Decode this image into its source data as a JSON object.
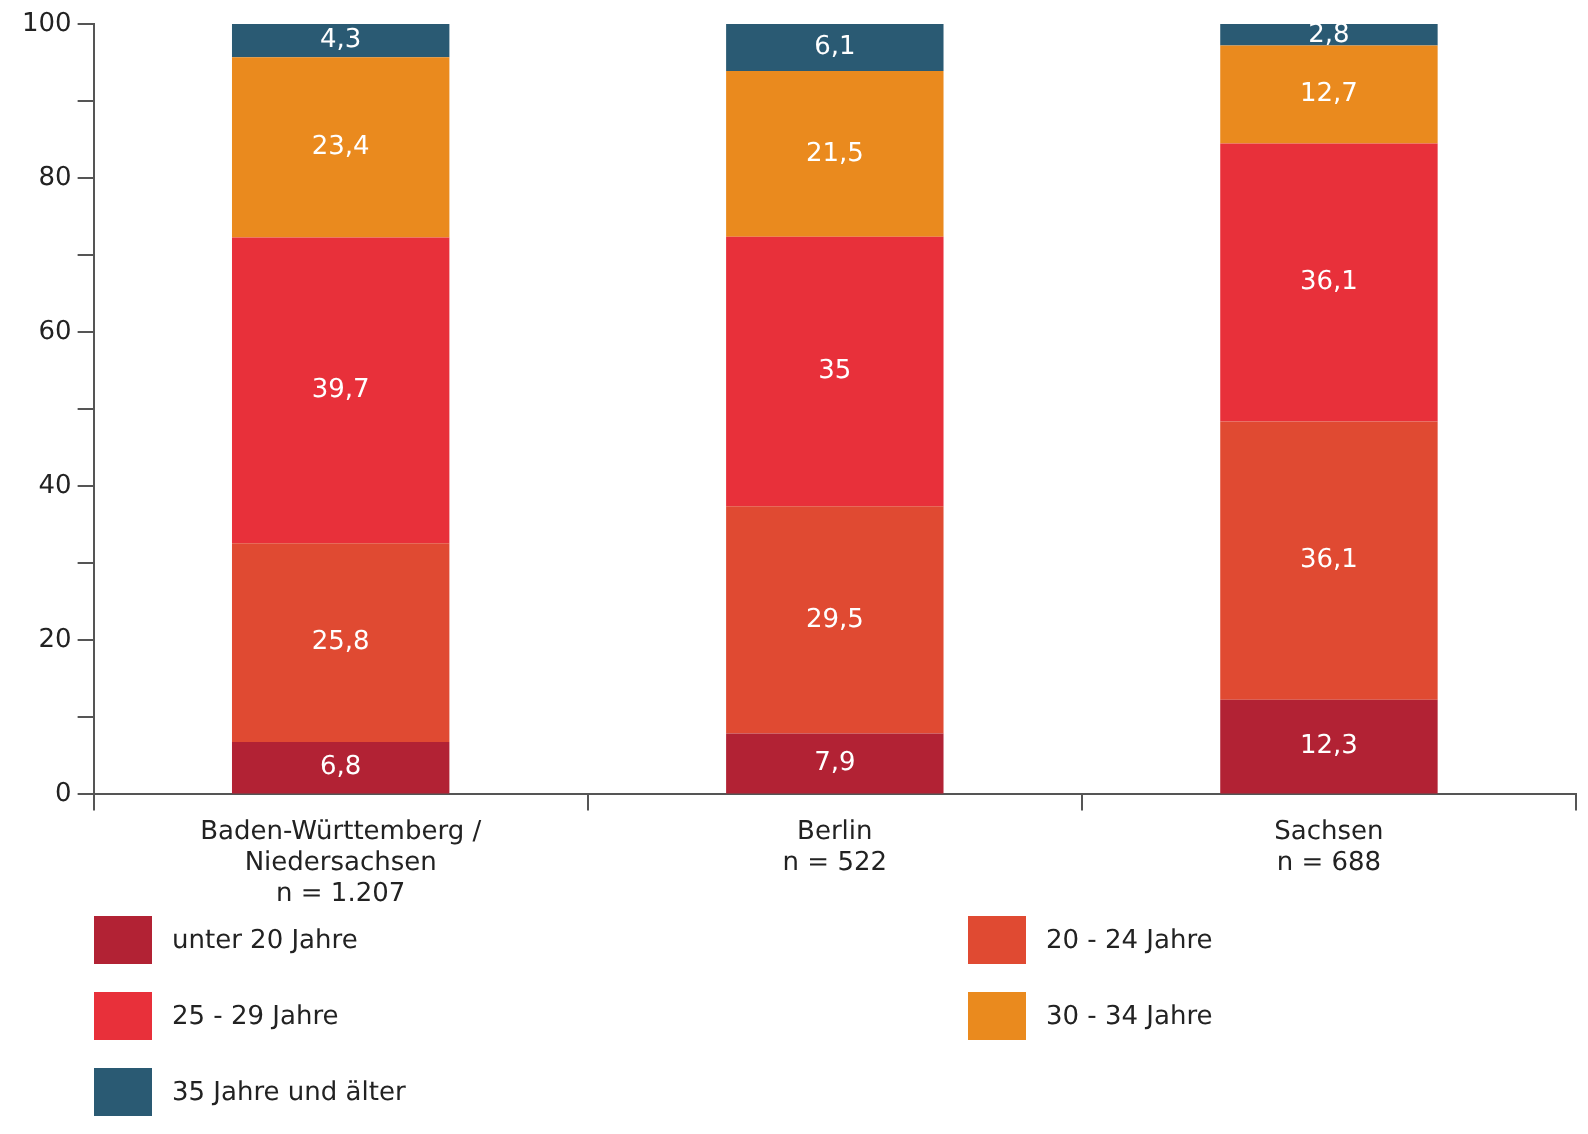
{
  "chart_data": {
    "type": "bar",
    "stacked": true,
    "categories": [
      "Baden-Württemberg /\nNiedersachsen\nn = 1.207",
      "Berlin\nn = 522",
      "Sachsen\nn = 688"
    ],
    "series": [
      {
        "name": "unter 20 Jahre",
        "color": "#b22234",
        "values": [
          6.8,
          7.9,
          12.3
        ],
        "value_labels": [
          "6,8",
          "7,9",
          "12,3"
        ]
      },
      {
        "name": "20 - 24 Jahre",
        "color": "#e04a32",
        "values": [
          25.8,
          29.5,
          36.1
        ],
        "value_labels": [
          "25,8",
          "29,5",
          "36,1"
        ]
      },
      {
        "name": "25 - 29 Jahre",
        "color": "#e8303a",
        "values": [
          39.7,
          35,
          36.1
        ],
        "value_labels": [
          "39,7",
          "35",
          "36,1"
        ]
      },
      {
        "name": "30 - 34 Jahre",
        "color": "#ea8a1e",
        "values": [
          23.4,
          21.5,
          12.7
        ],
        "value_labels": [
          "23,4",
          "21,5",
          "12,7"
        ]
      },
      {
        "name": "35 Jahre und älter",
        "color": "#2a5a73",
        "values": [
          4.3,
          6.1,
          2.8
        ],
        "value_labels": [
          "4,3",
          "6,1",
          "2,8"
        ]
      }
    ],
    "ylim": [
      0,
      100
    ],
    "yticks": [
      0,
      {
        "value": 10,
        "label": null
      },
      20,
      {
        "value": 30,
        "label": null
      },
      40,
      {
        "value": 50,
        "label": null
      },
      60,
      {
        "value": 70,
        "label": null
      },
      80,
      {
        "value": 90,
        "label": null
      },
      100
    ],
    "grid": false,
    "legend": "bottom"
  }
}
